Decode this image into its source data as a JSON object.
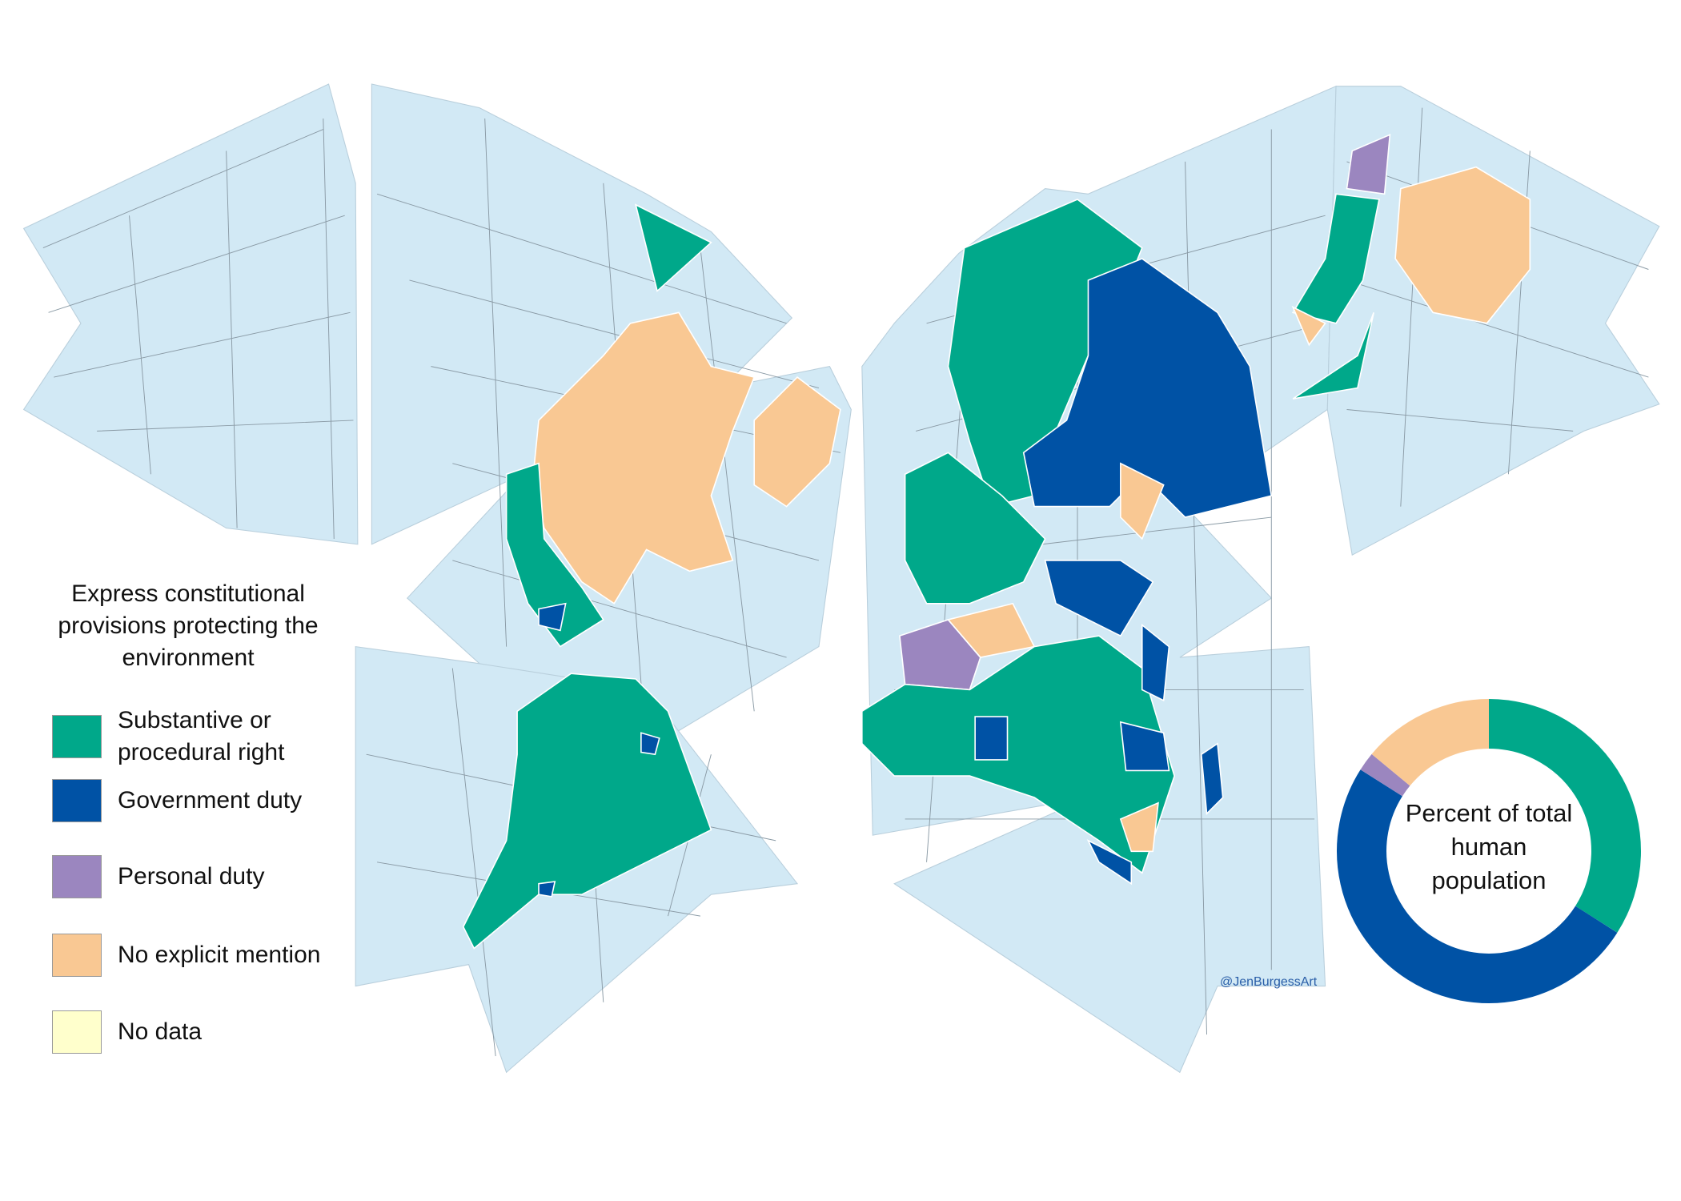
{
  "chart_data": {
    "type": "donut",
    "legend_title": "Express constitutional provisions protecting the environment",
    "title": "Percent of total human population",
    "categories": [
      "Substantive or procedural right",
      "Government duty",
      "Personal duty",
      "No explicit mention",
      "No data"
    ],
    "colors": [
      "#00a88a",
      "#0052a5",
      "#9b86bf",
      "#f9c893",
      "#ffffcc"
    ],
    "values": [
      34,
      50,
      2,
      14,
      0
    ]
  },
  "credit": "@JenBurgessArt"
}
